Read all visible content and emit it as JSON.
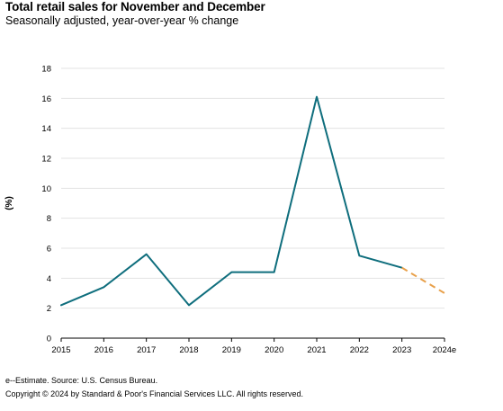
{
  "header": {
    "title": "Total retail sales for November and December",
    "subtitle": "Seasonally adjusted, year-over-year % change"
  },
  "footer": {
    "footnote": "e--Estimate. Source: U.S. Census Bureau.",
    "copyright": "Copyright © 2024 by Standard & Poor's Financial Services LLC. All rights reserved."
  },
  "chart_data": {
    "type": "line",
    "title": "Total retail sales for November and December",
    "subtitle": "Seasonally adjusted, year-over-year % change",
    "xlabel": "",
    "ylabel": "(%)",
    "categories": [
      "2015",
      "2016",
      "2017",
      "2018",
      "2019",
      "2020",
      "2021",
      "2022",
      "2023",
      "2024e"
    ],
    "ylim": [
      0,
      18
    ],
    "yticks": [
      0,
      2,
      4,
      6,
      8,
      10,
      12,
      14,
      16,
      18
    ],
    "grid": "horizontal",
    "series": [
      {
        "values": [
          2.2,
          3.4,
          5.6,
          2.2,
          4.4,
          4.4,
          16.1,
          5.5,
          4.7,
          null
        ],
        "color": "#0f6e7d",
        "style": "solid"
      },
      {
        "values": [
          null,
          null,
          null,
          null,
          null,
          null,
          null,
          null,
          4.7,
          3.0
        ],
        "color": "#e8a04a",
        "style": "dashed"
      }
    ]
  }
}
